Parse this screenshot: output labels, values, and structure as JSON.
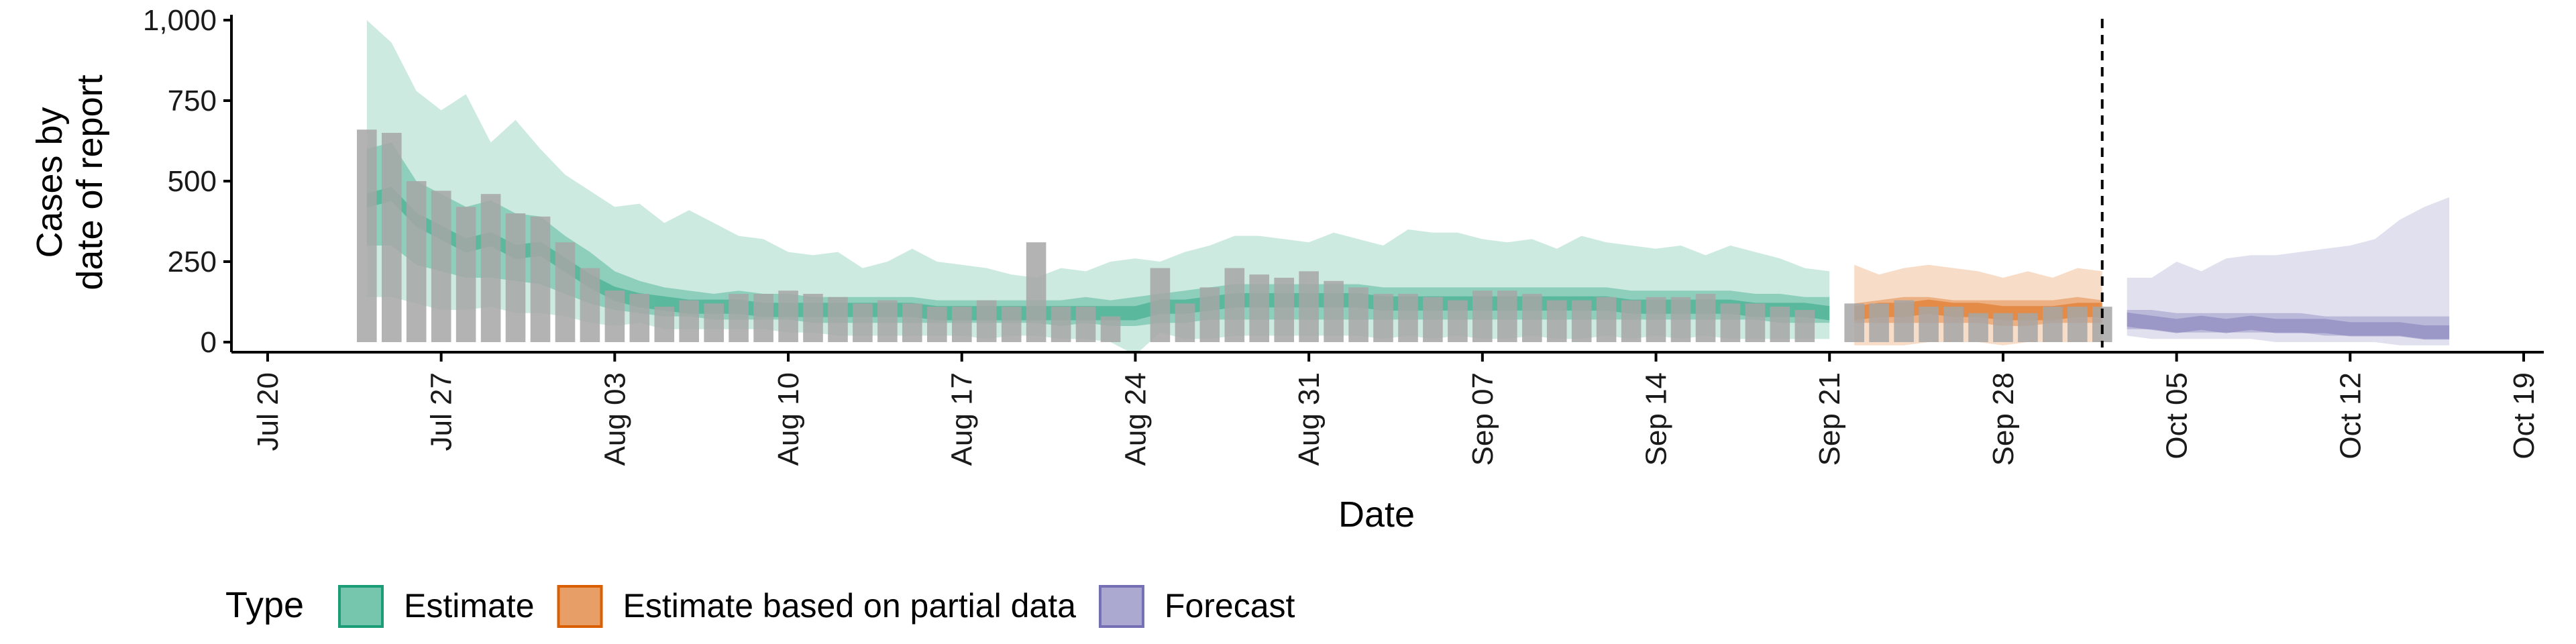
{
  "colors": {
    "estimate": "#1B9E77",
    "partial": "#D95F02",
    "forecast": "#7570B3",
    "bars": "#a6a6a6"
  },
  "legend": {
    "title": "Type",
    "items": [
      {
        "label": "Estimate",
        "color": "#1B9E77"
      },
      {
        "label": "Estimate based on partial data",
        "color": "#D95F02"
      },
      {
        "label": "Forecast",
        "color": "#7570B3"
      }
    ]
  },
  "chart_data": {
    "type": "area",
    "xlabel": "Date",
    "ylabel_lines": [
      "Cases by",
      "date of report"
    ],
    "ylim": [
      0,
      1000
    ],
    "xlim": [
      "2020-07-19",
      "2020-10-19"
    ],
    "y_ticks": [
      0,
      250,
      500,
      750,
      1000
    ],
    "y_tick_labels": [
      "0",
      "250",
      "500",
      "750",
      "1,000"
    ],
    "x_ticks": [
      "2020-07-20",
      "2020-07-27",
      "2020-08-03",
      "2020-08-10",
      "2020-08-17",
      "2020-08-24",
      "2020-08-31",
      "2020-09-07",
      "2020-09-14",
      "2020-09-21",
      "2020-09-28",
      "2020-10-05",
      "2020-10-12",
      "2020-10-19"
    ],
    "x_tick_labels": [
      "Jul 20",
      "Jul 27",
      "Aug 03",
      "Aug 10",
      "Aug 17",
      "Aug 24",
      "Aug 31",
      "Sep 07",
      "Sep 14",
      "Sep 21",
      "Sep 28",
      "Oct 05",
      "Oct 12",
      "Oct 19"
    ],
    "forecast_date": "2020-10-02",
    "bars": {
      "start": "2020-07-24",
      "values": [
        660,
        650,
        500,
        470,
        420,
        460,
        400,
        390,
        310,
        230,
        160,
        150,
        110,
        130,
        120,
        150,
        150,
        160,
        150,
        140,
        120,
        130,
        120,
        110,
        110,
        130,
        110,
        310,
        110,
        110,
        80,
        0,
        230,
        120,
        170,
        230,
        210,
        200,
        220,
        190,
        170,
        150,
        150,
        140,
        130,
        160,
        160,
        150,
        130,
        130,
        140,
        130,
        140,
        140,
        150,
        120,
        120,
        110,
        100,
        0,
        120,
        120,
        130,
        110,
        110,
        90,
        90,
        90,
        110,
        110,
        110
      ]
    },
    "series": [
      {
        "name": "Estimate",
        "start": "2020-07-24",
        "lower90": [
          140,
          140,
          120,
          100,
          100,
          110,
          90,
          90,
          80,
          60,
          50,
          60,
          40,
          40,
          40,
          40,
          40,
          30,
          30,
          20,
          20,
          20,
          20,
          20,
          20,
          10,
          20,
          20,
          10,
          10,
          0,
          -40,
          30,
          10,
          10,
          20,
          20,
          20,
          20,
          20,
          20,
          10,
          20,
          10,
          20,
          10,
          10,
          20,
          10,
          10,
          20,
          10,
          20,
          10,
          20,
          10,
          10,
          10,
          10,
          10
        ],
        "lower50": [
          300,
          300,
          240,
          220,
          200,
          200,
          190,
          180,
          150,
          120,
          100,
          90,
          80,
          80,
          70,
          70,
          70,
          70,
          60,
          60,
          60,
          60,
          60,
          60,
          60,
          60,
          60,
          60,
          50,
          60,
          50,
          50,
          60,
          60,
          70,
          70,
          70,
          70,
          70,
          70,
          70,
          70,
          70,
          70,
          70,
          70,
          70,
          70,
          70,
          70,
          70,
          70,
          70,
          70,
          70,
          70,
          70,
          60,
          60,
          60
        ],
        "median": [
          440,
          460,
          380,
          340,
          300,
          320,
          280,
          290,
          240,
          190,
          150,
          130,
          120,
          110,
          110,
          110,
          100,
          100,
          100,
          100,
          100,
          100,
          100,
          90,
          90,
          90,
          90,
          90,
          90,
          90,
          90,
          90,
          110,
          110,
          120,
          130,
          130,
          130,
          130,
          130,
          130,
          120,
          120,
          120,
          120,
          120,
          120,
          120,
          120,
          120,
          120,
          110,
          110,
          110,
          110,
          110,
          100,
          100,
          100,
          90
        ],
        "upper50": [
          600,
          620,
          500,
          460,
          420,
          440,
          400,
          390,
          330,
          280,
          220,
          190,
          170,
          160,
          150,
          160,
          150,
          150,
          140,
          140,
          140,
          140,
          140,
          130,
          130,
          130,
          130,
          130,
          130,
          140,
          130,
          140,
          150,
          160,
          170,
          180,
          180,
          180,
          180,
          180,
          180,
          170,
          170,
          170,
          170,
          170,
          170,
          170,
          170,
          170,
          170,
          160,
          160,
          160,
          160,
          160,
          150,
          150,
          140,
          140
        ],
        "upper90": [
          1000,
          930,
          780,
          720,
          770,
          620,
          690,
          600,
          520,
          470,
          420,
          430,
          370,
          410,
          370,
          330,
          320,
          280,
          270,
          280,
          230,
          250,
          290,
          250,
          240,
          230,
          210,
          200,
          230,
          220,
          250,
          260,
          250,
          280,
          300,
          330,
          330,
          320,
          310,
          340,
          320,
          300,
          350,
          340,
          340,
          320,
          310,
          320,
          290,
          330,
          310,
          300,
          290,
          300,
          270,
          300,
          280,
          260,
          230,
          220
        ]
      },
      {
        "name": "Estimate based on partial data",
        "start": "2020-09-22",
        "lower90": [
          -10,
          -10,
          -10,
          0,
          0,
          0,
          -10,
          0,
          0,
          0,
          0
        ],
        "lower50": [
          60,
          60,
          60,
          60,
          60,
          60,
          50,
          50,
          60,
          60,
          60
        ],
        "median": [
          90,
          100,
          100,
          110,
          100,
          100,
          90,
          90,
          90,
          100,
          100
        ],
        "upper50": [
          120,
          130,
          140,
          140,
          130,
          130,
          130,
          130,
          130,
          140,
          130
        ],
        "upper90": [
          240,
          210,
          230,
          240,
          230,
          220,
          200,
          220,
          200,
          230,
          220
        ]
      },
      {
        "name": "Forecast",
        "start": "2020-10-03",
        "lower90": [
          20,
          10,
          10,
          10,
          10,
          10,
          0,
          0,
          0,
          0,
          0,
          -10,
          -10,
          -10
        ],
        "lower50": [
          40,
          40,
          30,
          30,
          30,
          30,
          30,
          30,
          20,
          20,
          20,
          20,
          10,
          10
        ],
        "median": [
          70,
          60,
          50,
          60,
          50,
          60,
          50,
          50,
          50,
          40,
          40,
          40,
          30,
          30
        ],
        "upper50": [
          100,
          100,
          90,
          90,
          90,
          90,
          90,
          90,
          80,
          80,
          80,
          80,
          80,
          80
        ],
        "upper90": [
          200,
          200,
          250,
          220,
          260,
          270,
          270,
          280,
          290,
          300,
          320,
          380,
          420,
          450
        ]
      }
    ]
  }
}
